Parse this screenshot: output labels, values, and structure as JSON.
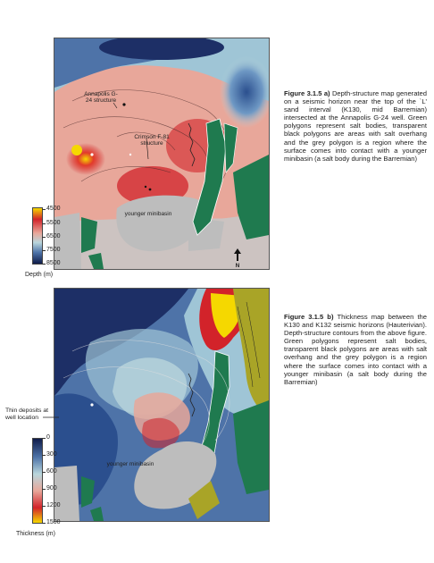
{
  "figure_a": {
    "caption_title": "Figure 3.1.5 a)",
    "caption_body": " Depth-structure map generated on a seismic horizon near the top of the `L' sand interval (K130, mid Barremian) intersected at the Annapolis G-24 well. Green polygons represent salt bodies, transparent black polygons are areas with salt overhang and the grey polygon is a region where the surface comes into contact with a younger minibasin (a salt body during the Barremian)",
    "labels": {
      "annapolis": "Annapolis G-24 structure",
      "crimson": "Crimson F-81 structure",
      "minibasin": "younger minibasin"
    },
    "legend": {
      "ticks": [
        "4500",
        "5500",
        "6500",
        "7500",
        "8500"
      ],
      "unit": "Depth (m)",
      "colors": [
        "#f5d800",
        "#d2232a",
        "#e8a79a",
        "#b9d6dc",
        "#101c4a"
      ]
    }
  },
  "figure_b": {
    "caption_title": "Figure 3.1.5 b)",
    "caption_body": " Thickness map between the K130 and K132 seismic horizons (Hauterivian). Depth-structure contours from the above figure. Green polygons represent salt bodies, transparent black polygons are areas with salt overhang and the grey polygon is a region where the surface comes into contact with a younger minibasin (a salt body during the Barremian)",
    "labels": {
      "minibasin": "younger minibasin"
    },
    "side_note": "Thin deposits at well location",
    "legend": {
      "ticks": [
        "0",
        "300",
        "600",
        "900",
        "1200",
        "1500"
      ],
      "unit": "Thickness (m)",
      "colors": [
        "#101c4a",
        "#5a78a8",
        "#b9d6dc",
        "#e8a79a",
        "#d2232a",
        "#f5d800"
      ]
    }
  },
  "north_arrow": {
    "label": "N"
  },
  "colors": {
    "salt_green": "#1f7a4f",
    "minibasin_grey": "#bdbdbd",
    "overhang_olive": "#a9a427"
  }
}
